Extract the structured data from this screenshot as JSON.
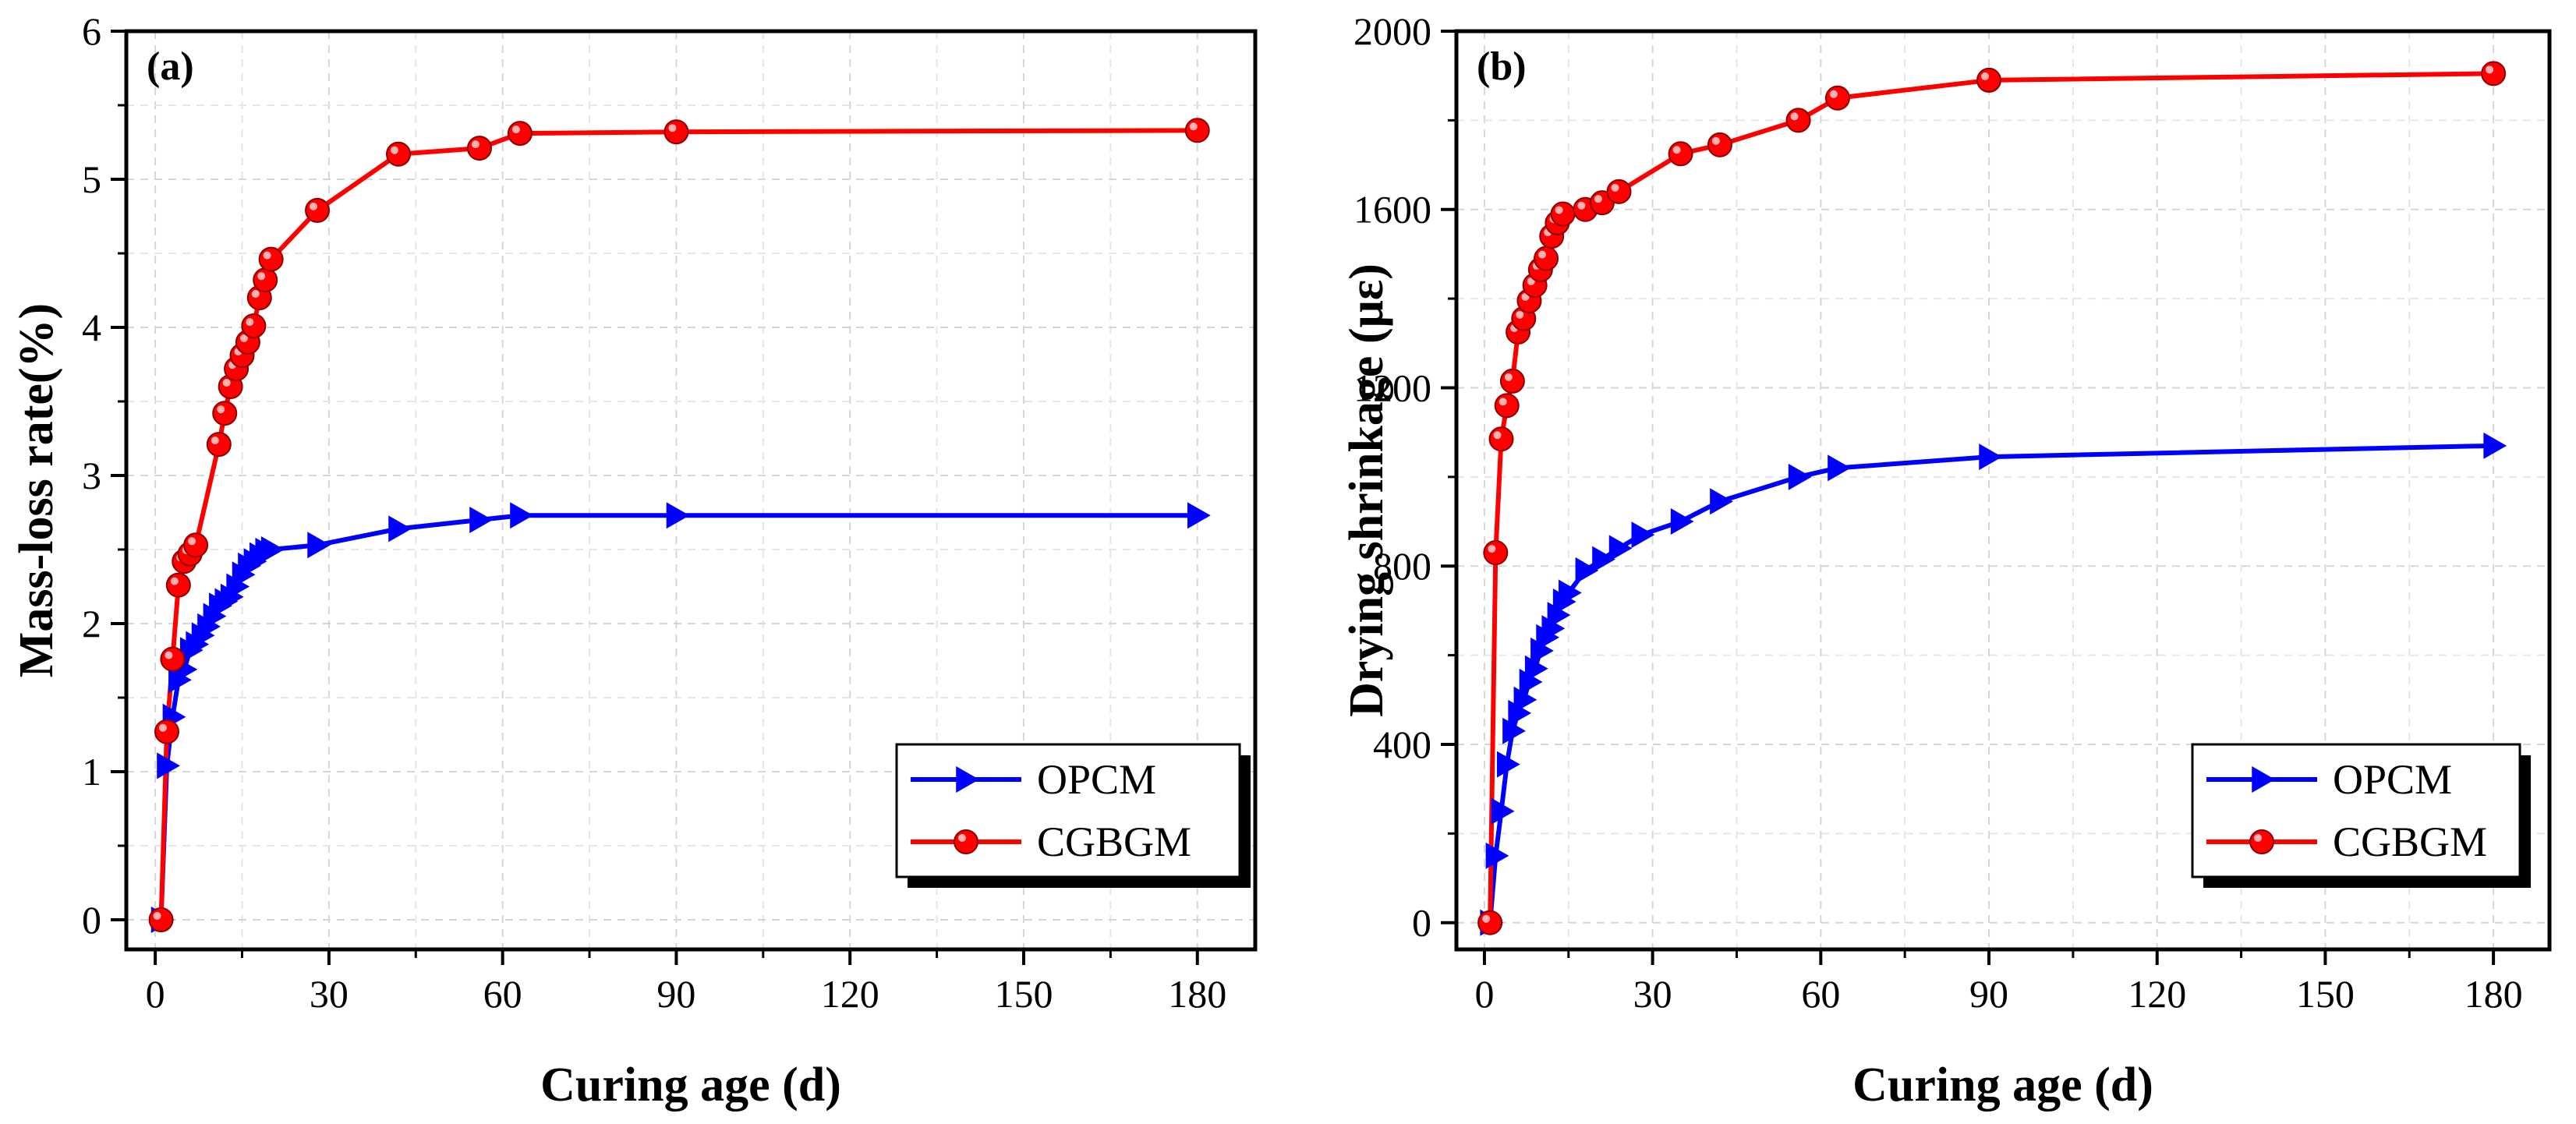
{
  "chart_data": [
    {
      "type": "line",
      "panel_label": "(a)",
      "xlabel": "Curing age (d)",
      "ylabel": "Mass-loss rate(%)",
      "xlim": [
        -5,
        190
      ],
      "ylim": [
        -0.2,
        6
      ],
      "xticks": [
        0,
        30,
        60,
        90,
        120,
        150,
        180
      ],
      "yticks": [
        0,
        1,
        2,
        3,
        4,
        5,
        6
      ],
      "grid": true,
      "legend_position": "bottom-right",
      "series": [
        {
          "name": "OPCM",
          "color": "#0000ff",
          "marker": "triangle-right",
          "x": [
            1,
            2,
            3,
            4,
            5,
            6,
            7,
            8,
            9,
            10,
            11,
            12,
            13,
            14,
            15,
            16,
            17,
            18,
            19,
            20,
            28,
            42,
            56,
            63,
            90,
            180
          ],
          "y": [
            0,
            1.04,
            1.37,
            1.62,
            1.69,
            1.82,
            1.86,
            1.92,
            1.98,
            2.05,
            2.12,
            2.15,
            2.18,
            2.25,
            2.33,
            2.39,
            2.42,
            2.46,
            2.49,
            2.5,
            2.53,
            2.64,
            2.7,
            2.73,
            2.73,
            2.73
          ]
        },
        {
          "name": "CGBGM",
          "color": "#ff0000",
          "marker": "circle",
          "x": [
            1,
            2,
            3,
            4,
            5,
            6,
            7,
            11,
            12,
            13,
            14,
            15,
            16,
            17,
            18,
            19,
            20,
            28,
            42,
            56,
            63,
            90,
            180
          ],
          "y": [
            0,
            1.27,
            1.76,
            2.26,
            2.42,
            2.47,
            2.53,
            3.21,
            3.42,
            3.6,
            3.72,
            3.81,
            3.9,
            4.01,
            4.2,
            4.32,
            4.46,
            4.79,
            5.17,
            5.21,
            5.31,
            5.32,
            5.33
          ]
        }
      ]
    },
    {
      "type": "line",
      "panel_label": "(b)",
      "xlabel": "Curing age (d)",
      "ylabel": "Drying shrinkage (με)",
      "xlim": [
        -5,
        190
      ],
      "ylim": [
        -60,
        2000
      ],
      "xticks": [
        0,
        30,
        60,
        90,
        120,
        150,
        180
      ],
      "yticks": [
        0,
        400,
        800,
        1200,
        1600,
        2000
      ],
      "grid": true,
      "legend_position": "bottom-right",
      "series": [
        {
          "name": "OPCM",
          "color": "#0000ff",
          "marker": "triangle-right",
          "x": [
            1,
            2,
            3,
            4,
            5,
            6,
            7,
            8,
            9,
            10,
            11,
            12,
            13,
            14,
            15,
            18,
            21,
            24,
            28,
            35,
            42,
            56,
            63,
            90,
            180
          ],
          "y": [
            0,
            150,
            250,
            355,
            430,
            470,
            500,
            540,
            570,
            610,
            640,
            660,
            690,
            720,
            740,
            790,
            815,
            840,
            870,
            900,
            945,
            1000,
            1020,
            1045,
            1070
          ]
        },
        {
          "name": "CGBGM",
          "color": "#ff0000",
          "marker": "circle",
          "x": [
            1,
            2,
            3,
            4,
            5,
            6,
            7,
            8,
            9,
            10,
            11,
            12,
            13,
            14,
            18,
            21,
            24,
            35,
            42,
            56,
            63,
            90,
            180
          ],
          "y": [
            0,
            830,
            1085,
            1160,
            1215,
            1325,
            1355,
            1395,
            1430,
            1465,
            1490,
            1540,
            1570,
            1590,
            1600,
            1615,
            1640,
            1725,
            1745,
            1800,
            1850,
            1890,
            1905
          ]
        }
      ]
    }
  ]
}
